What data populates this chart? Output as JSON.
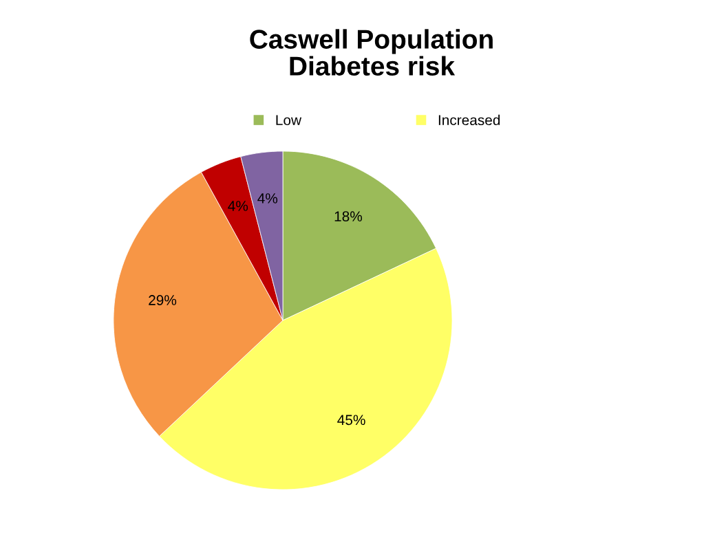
{
  "chart_data": {
    "type": "pie",
    "title": "Caswell Population\nDiabetes risk",
    "categories": [
      "Low",
      "Increased",
      null,
      null,
      null
    ],
    "values": [
      18,
      45,
      29,
      4,
      4
    ],
    "colors": [
      "#9bbb59",
      "#ffff66",
      "#f79646",
      "#c00000",
      "#8064a2"
    ],
    "value_labels": [
      "18%",
      "45%",
      "29%",
      "4%",
      "4%"
    ],
    "legend": "top"
  }
}
